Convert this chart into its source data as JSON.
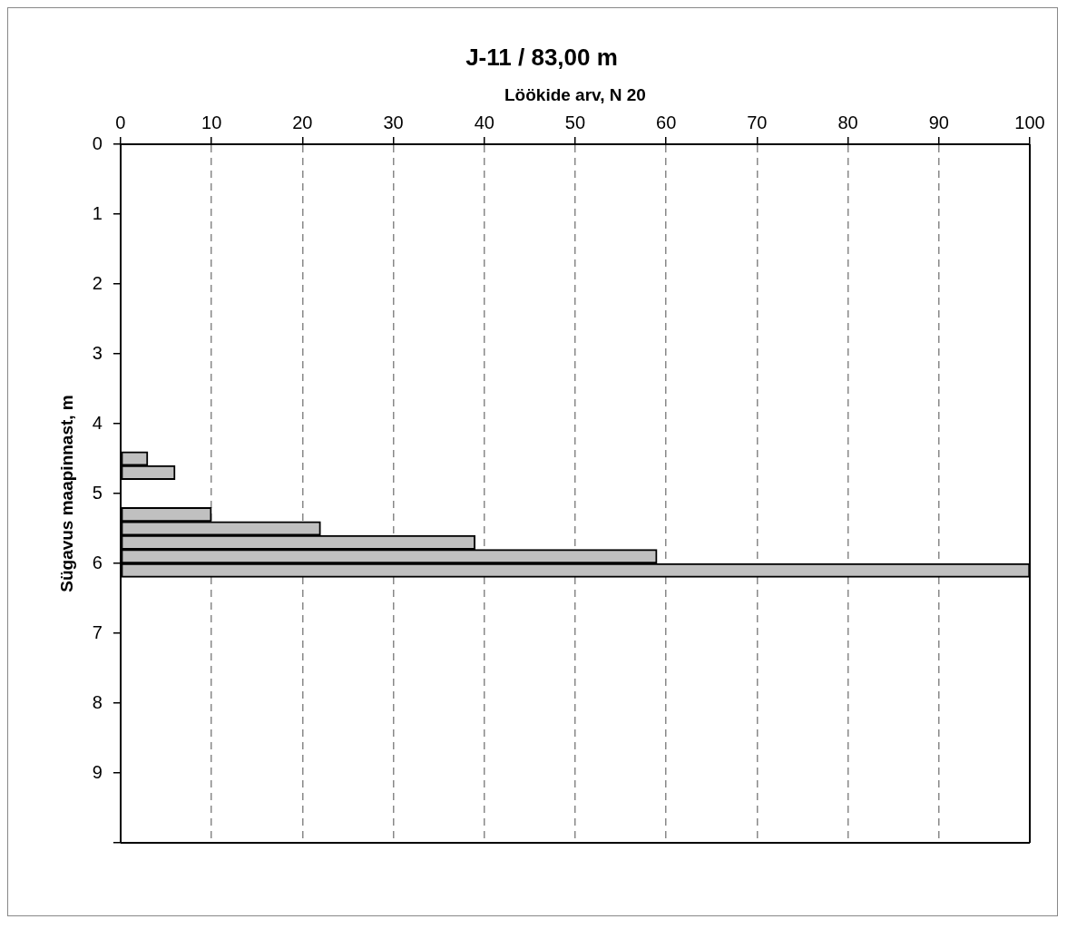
{
  "chart_data": {
    "type": "bar",
    "orientation": "horizontal",
    "title": "J-11 / 83,00 m",
    "xlabel": "Löökide arv, N 20",
    "ylabel": "Sügavus maapinnast, m",
    "x": [
      4.5,
      4.7,
      5.3,
      5.5,
      5.7,
      5.9,
      6.1
    ],
    "values": [
      3,
      6,
      10,
      22,
      39,
      59,
      100
    ],
    "color": "#c0c0c0",
    "xlim": [
      0,
      100
    ],
    "xticks": [
      0,
      10,
      20,
      30,
      40,
      50,
      60,
      70,
      80,
      90,
      100
    ],
    "ylim": [
      10,
      0
    ],
    "yticks": [
      0,
      1,
      2,
      3,
      4,
      5,
      6,
      7,
      8,
      9,
      {
        "value": 10,
        "label": null
      }
    ],
    "grid": "x",
    "legend": false
  }
}
